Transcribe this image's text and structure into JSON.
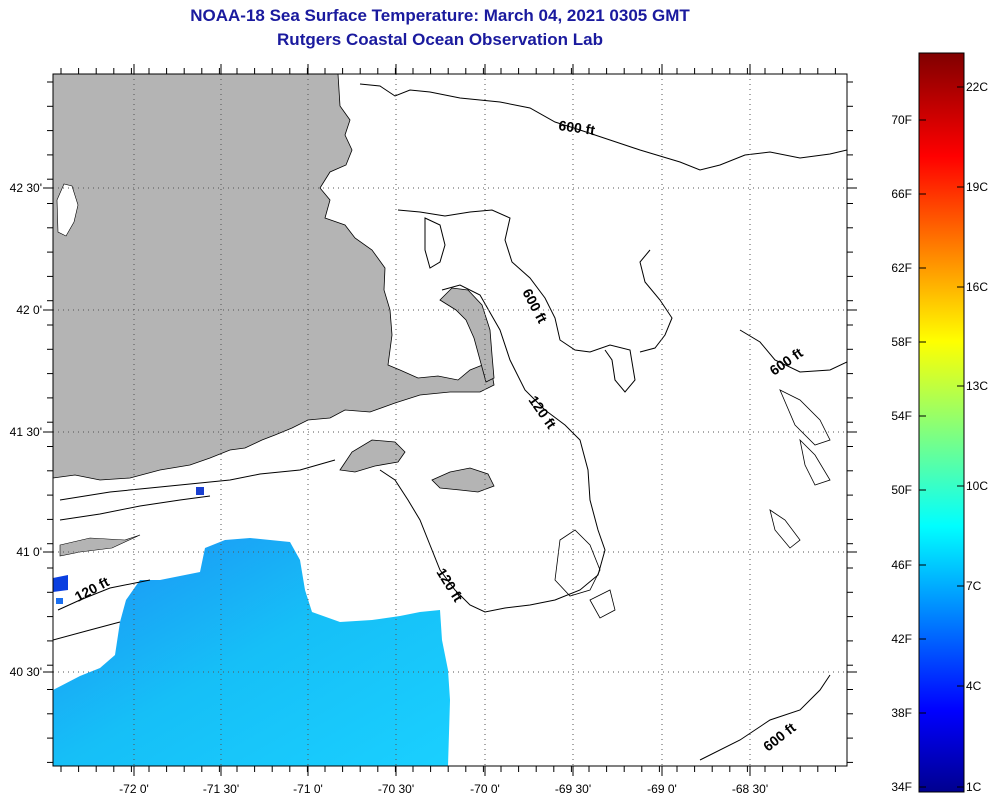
{
  "header": {
    "title": "NOAA-18 Sea Surface Temperature:  March 04, 2021 0305 GMT",
    "subtitle": "Rutgers Coastal Ocean Observation Lab"
  },
  "map": {
    "lon_labels": [
      "-72 0'",
      "-71 30'",
      "-71 0'",
      "-70 30'",
      "-70 0'",
      "-69 30'",
      "-69 0'",
      "-68 30'"
    ],
    "lat_labels": [
      "42 30'",
      "42 0'",
      "41 30'",
      "41 0'",
      "40 30'"
    ],
    "contour_labels": [
      "600 ft",
      "600 ft",
      "600 ft",
      "120 ft",
      "120 ft",
      "120 ft",
      "600 ft"
    ],
    "colors": {
      "land": "#b4b4b4",
      "ocean_no_data": "#ffffff",
      "sst_cold": "#1e90ff",
      "sst_warm": "#19d4ff"
    }
  },
  "colorbar": {
    "fahrenheit_labels": [
      "70F",
      "66F",
      "62F",
      "58F",
      "54F",
      "50F",
      "46F",
      "42F",
      "38F",
      "34F"
    ],
    "celsius_labels": [
      "22C",
      "19C",
      "16C",
      "13C",
      "10C",
      "7C",
      "4C",
      "1C"
    ],
    "colormap": "jet"
  }
}
